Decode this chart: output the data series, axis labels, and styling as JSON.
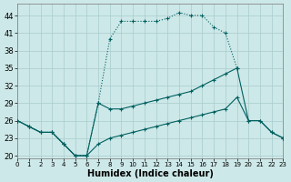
{
  "xlabel": "Humidex (Indice chaleur)",
  "bg_color": "#cde8e8",
  "grid_color": "#a8cccc",
  "line_color": "#006060",
  "xlim": [
    0,
    23
  ],
  "ylim": [
    19.5,
    46
  ],
  "xticks": [
    0,
    1,
    2,
    3,
    4,
    5,
    6,
    7,
    8,
    9,
    10,
    11,
    12,
    13,
    14,
    15,
    16,
    17,
    18,
    19,
    20,
    21,
    22,
    23
  ],
  "yticks": [
    20,
    23,
    26,
    29,
    32,
    35,
    38,
    41,
    44
  ],
  "series1": [
    26,
    25,
    24,
    24,
    22,
    20,
    20,
    29,
    40,
    43,
    43,
    43,
    43,
    43.5,
    44.5,
    44,
    44,
    42,
    41,
    35,
    null,
    null,
    null,
    null
  ],
  "series2": [
    26,
    25,
    24,
    24,
    22,
    20,
    20,
    29,
    28,
    28,
    28.5,
    29,
    29.5,
    30,
    30.5,
    31,
    32,
    33,
    34,
    35,
    26,
    26,
    24,
    23
  ],
  "series3": [
    26,
    25,
    24,
    24,
    22,
    20,
    20,
    22,
    23,
    23.5,
    24,
    24.5,
    25,
    25.5,
    26,
    26.5,
    27,
    27.5,
    28,
    30,
    26,
    26,
    24,
    23
  ]
}
